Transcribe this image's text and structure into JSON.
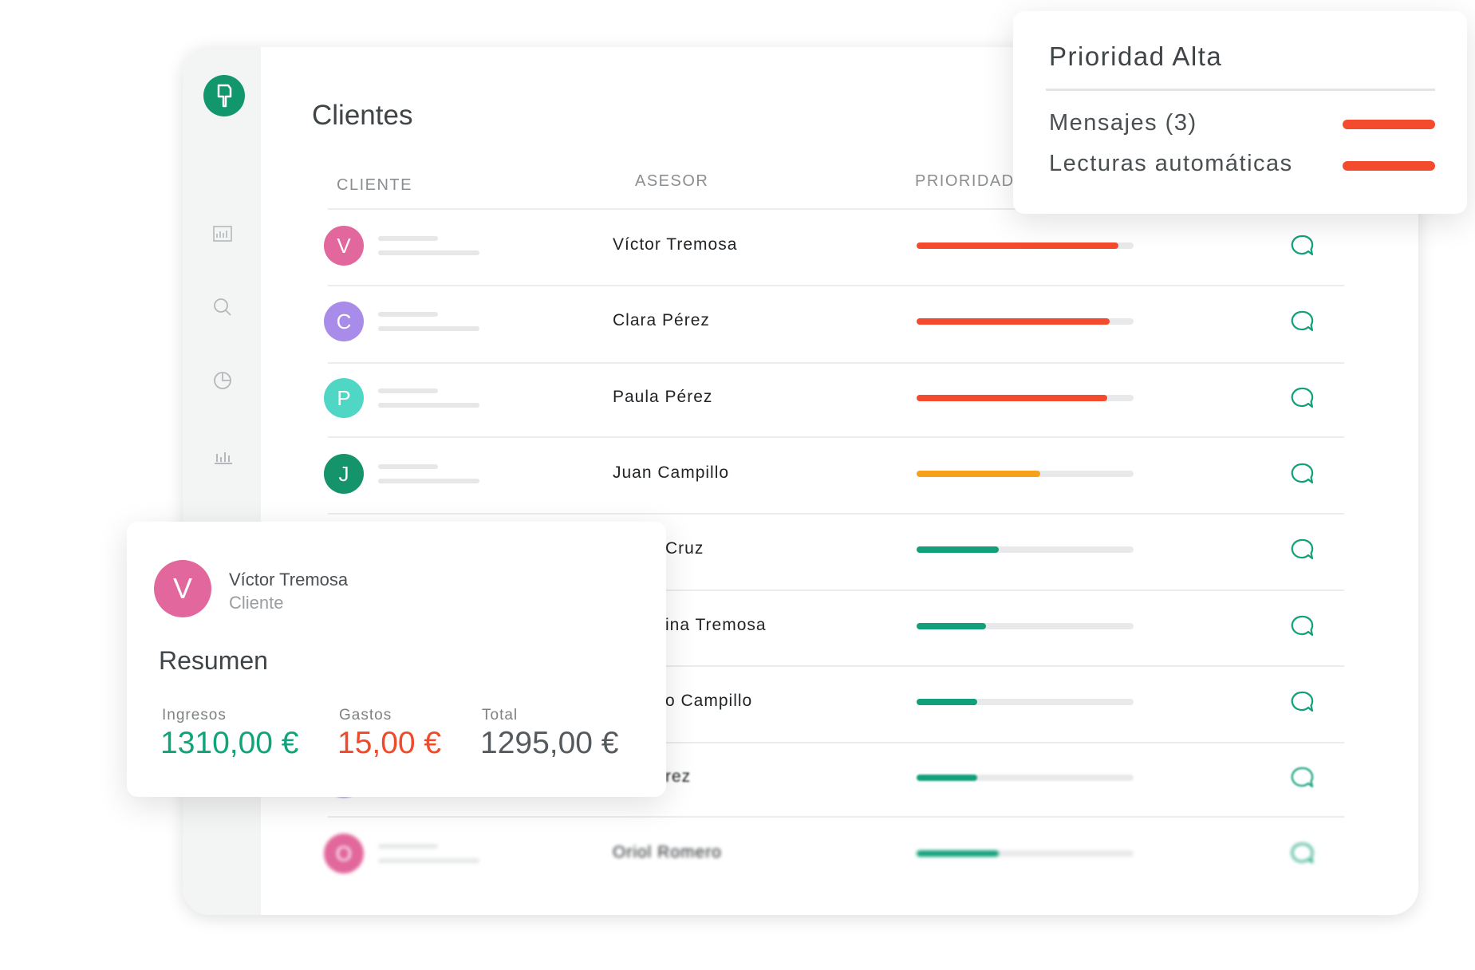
{
  "page": {
    "title": "Clientes",
    "columns": [
      "CLIENTE",
      "ASESOR",
      "PRIORIDAD"
    ],
    "rows": [
      {
        "initial": "V",
        "avatar_color": "#e2679c",
        "advisor": "Víctor Tremosa",
        "priority": 0.93,
        "priority_color": "#f44b2e"
      },
      {
        "initial": "C",
        "avatar_color": "#a98bea",
        "advisor": "Clara Pérez",
        "priority": 0.89,
        "priority_color": "#f44b2e"
      },
      {
        "initial": "P",
        "avatar_color": "#4fd6c4",
        "advisor": "Paula Pérez",
        "priority": 0.88,
        "priority_color": "#f44b2e"
      },
      {
        "initial": "J",
        "avatar_color": "#15936a",
        "advisor": "Juan Campillo",
        "priority": 0.57,
        "priority_color": "#f7a01c"
      },
      {
        "initial": null,
        "avatar_color": null,
        "advisor": "Cruz",
        "priority": 0.38,
        "priority_color": "#12a07a"
      },
      {
        "initial": null,
        "avatar_color": null,
        "advisor": "ina Tremosa",
        "priority": 0.32,
        "priority_color": "#12a07a"
      },
      {
        "initial": null,
        "avatar_color": null,
        "advisor": "o Campillo",
        "priority": 0.28,
        "priority_color": "#12a07a"
      },
      {
        "initial": null,
        "avatar_color": "#a98bea",
        "advisor": "rez",
        "priority": 0.28,
        "priority_color": "#12a07a"
      },
      {
        "initial": "O",
        "avatar_color": "#e2679c",
        "advisor": "Oriol Romero",
        "priority": 0.38,
        "priority_color": "#12a07a"
      }
    ]
  },
  "priority_card": {
    "title": "Prioridad Alta",
    "items": [
      "Mensajes (3)",
      "Lecturas automáticas"
    ]
  },
  "summary_card": {
    "initial": "V",
    "name": "Víctor Tremosa",
    "role": "Cliente",
    "heading": "Resumen",
    "metrics": [
      {
        "label": "Ingresos",
        "value": "1310,00 €",
        "color": "#11a47a"
      },
      {
        "label": "Gastos",
        "value": "15,00 €",
        "color": "#f04a2a"
      },
      {
        "label": "Total",
        "value": "1295,00 €",
        "color": "#555a5e"
      }
    ]
  }
}
